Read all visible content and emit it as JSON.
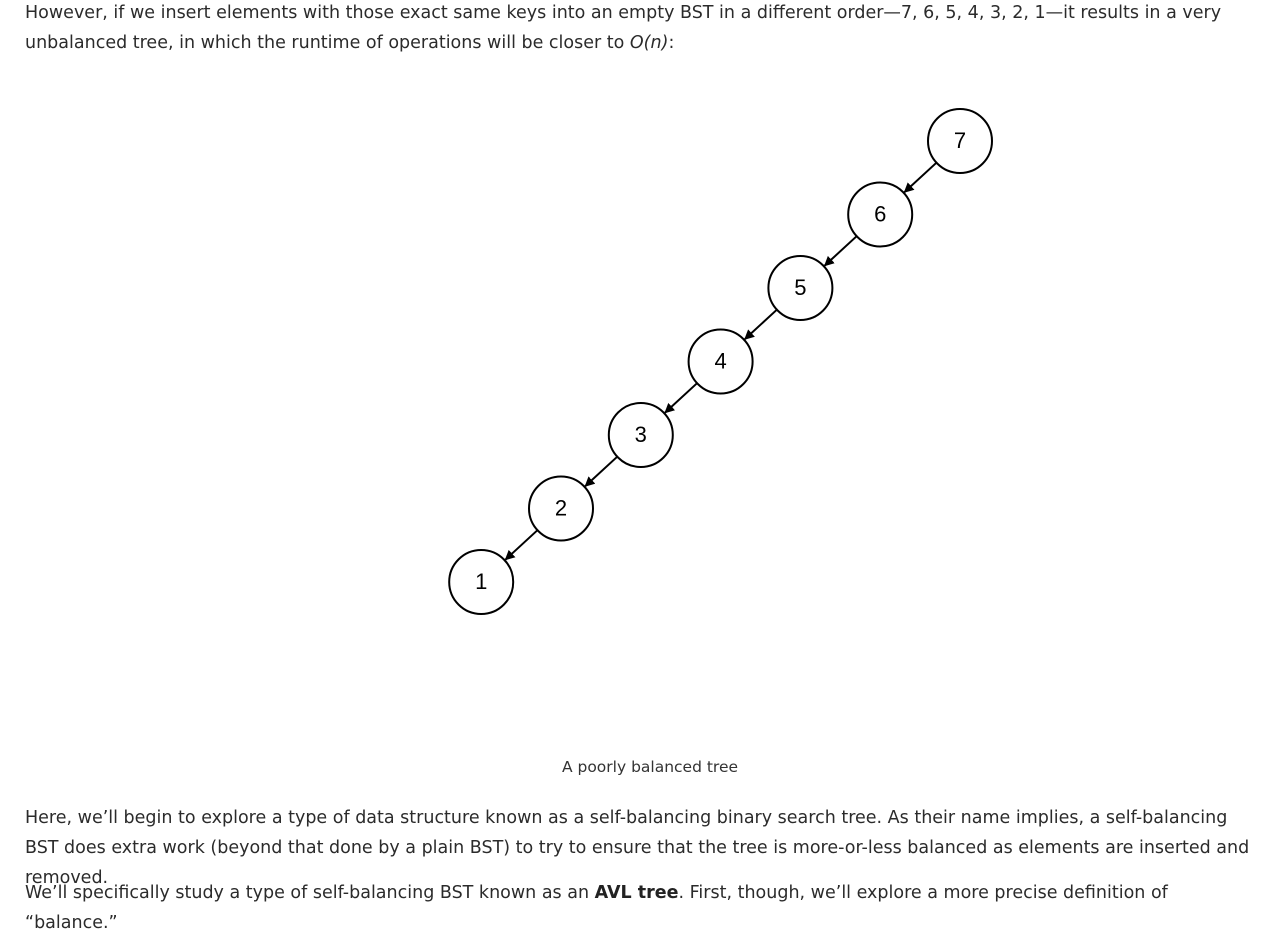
{
  "paragraphs": {
    "intro_before": "However, if we insert elements with those exact same keys into an empty BST in a different order—7, 6, 5, 4, 3, 2, 1—it results in a very unbalanced tree, in which the runtime of operations will be closer to ",
    "intro_math": "O(n)",
    "intro_after": ":",
    "selfbal": "Here, we’ll begin to explore a type of data structure known as a self-balancing binary search tree. As their name implies, a self-balancing BST does extra work (beyond that done by a plain BST) to try to ensure that the tree is more-or-less balanced as elements are inserted and removed.",
    "avl_before": "We’ll specifically study a type of self-balancing BST known as an ",
    "avl_bold": "AVL tree",
    "avl_after": ". First, though, we’ll explore a more precise definition of “balance.”"
  },
  "figure": {
    "caption": "A poorly balanced tree",
    "nodes": [
      "7",
      "6",
      "5",
      "4",
      "3",
      "2",
      "1"
    ]
  }
}
